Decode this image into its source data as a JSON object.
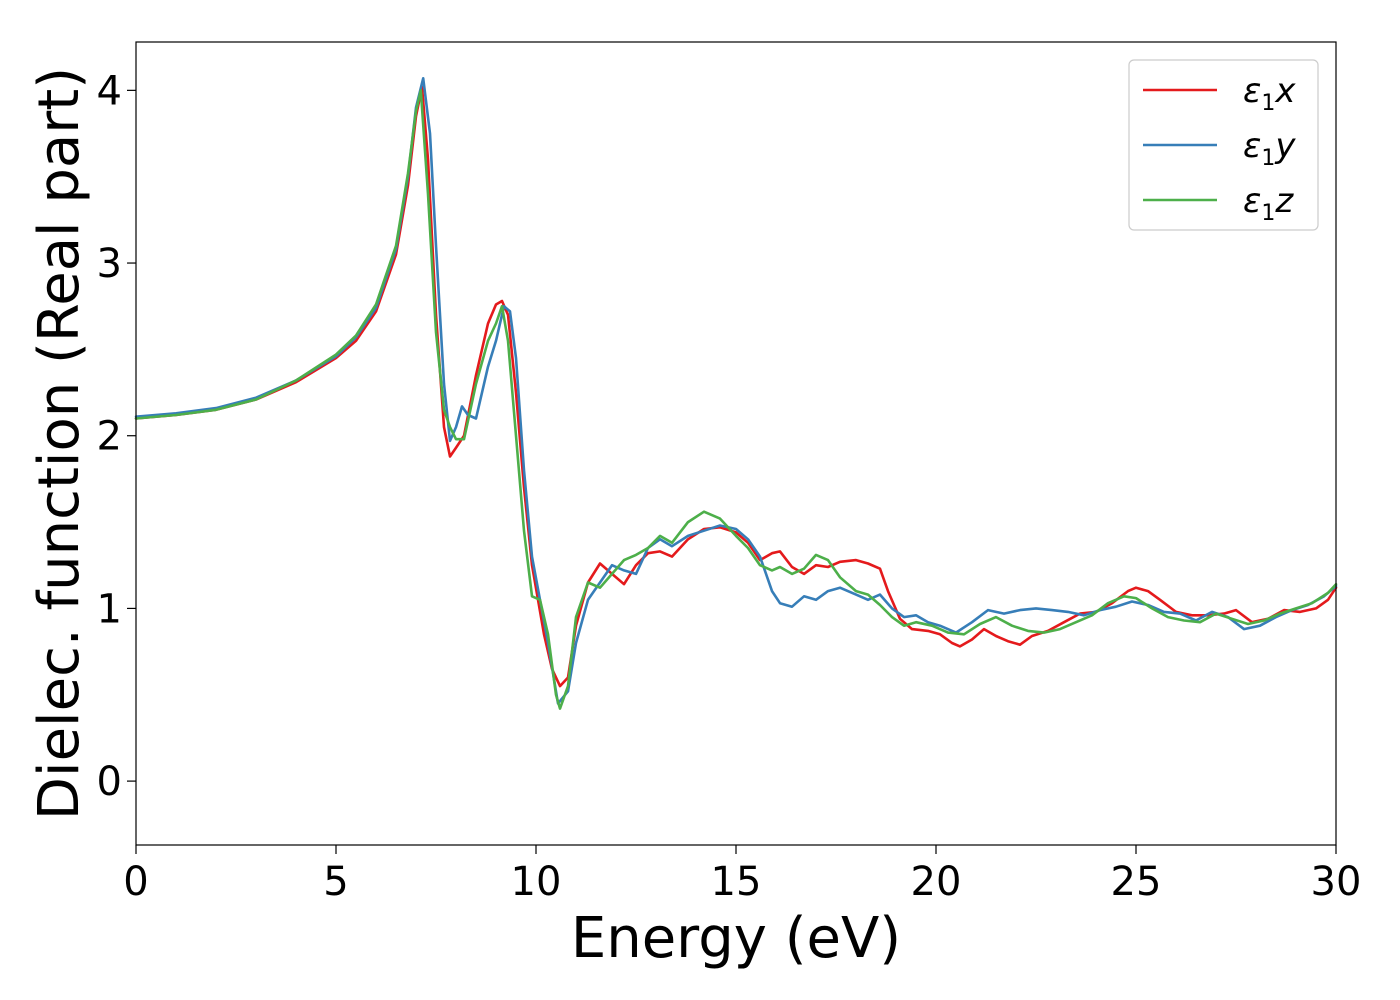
{
  "chart_data": {
    "type": "line",
    "title": "",
    "xlabel": "Energy (eV)",
    "ylabel": "Dielec. function (Real part)",
    "xlim": [
      0,
      30
    ],
    "ylim": [
      -0.37,
      4.28
    ],
    "xticks": [
      0,
      5,
      10,
      15,
      20,
      25,
      30
    ],
    "yticks": [
      0,
      1,
      2,
      3,
      4
    ],
    "grid": false,
    "legend_position": "top-right",
    "series": [
      {
        "name": "ε1x",
        "name_main": "ε",
        "name_sub": "1",
        "name_var": "x",
        "color": "#e41a1c",
        "points": [
          [
            0,
            2.1
          ],
          [
            1,
            2.12
          ],
          [
            2,
            2.15
          ],
          [
            3,
            2.21
          ],
          [
            4,
            2.31
          ],
          [
            5,
            2.45
          ],
          [
            5.5,
            2.55
          ],
          [
            6,
            2.72
          ],
          [
            6.5,
            3.05
          ],
          [
            6.8,
            3.45
          ],
          [
            7.0,
            3.85
          ],
          [
            7.15,
            4.02
          ],
          [
            7.3,
            3.6
          ],
          [
            7.5,
            2.7
          ],
          [
            7.7,
            2.05
          ],
          [
            7.85,
            1.88
          ],
          [
            8.0,
            1.93
          ],
          [
            8.2,
            2.0
          ],
          [
            8.5,
            2.35
          ],
          [
            8.8,
            2.65
          ],
          [
            9.0,
            2.76
          ],
          [
            9.15,
            2.78
          ],
          [
            9.3,
            2.7
          ],
          [
            9.5,
            2.25
          ],
          [
            9.7,
            1.7
          ],
          [
            9.9,
            1.25
          ],
          [
            10.2,
            0.85
          ],
          [
            10.4,
            0.65
          ],
          [
            10.6,
            0.55
          ],
          [
            10.8,
            0.6
          ],
          [
            11.0,
            0.9
          ],
          [
            11.3,
            1.15
          ],
          [
            11.6,
            1.26
          ],
          [
            11.9,
            1.2
          ],
          [
            12.2,
            1.14
          ],
          [
            12.5,
            1.25
          ],
          [
            12.8,
            1.32
          ],
          [
            13.1,
            1.33
          ],
          [
            13.4,
            1.3
          ],
          [
            13.8,
            1.4
          ],
          [
            14.2,
            1.46
          ],
          [
            14.6,
            1.47
          ],
          [
            15.0,
            1.44
          ],
          [
            15.3,
            1.38
          ],
          [
            15.6,
            1.28
          ],
          [
            15.9,
            1.32
          ],
          [
            16.1,
            1.33
          ],
          [
            16.4,
            1.24
          ],
          [
            16.7,
            1.2
          ],
          [
            17.0,
            1.25
          ],
          [
            17.3,
            1.24
          ],
          [
            17.6,
            1.27
          ],
          [
            18.0,
            1.28
          ],
          [
            18.3,
            1.26
          ],
          [
            18.6,
            1.23
          ],
          [
            18.8,
            1.1
          ],
          [
            19.1,
            0.94
          ],
          [
            19.4,
            0.88
          ],
          [
            19.8,
            0.87
          ],
          [
            20.1,
            0.85
          ],
          [
            20.4,
            0.8
          ],
          [
            20.6,
            0.78
          ],
          [
            20.9,
            0.82
          ],
          [
            21.2,
            0.88
          ],
          [
            21.5,
            0.84
          ],
          [
            21.8,
            0.81
          ],
          [
            22.1,
            0.79
          ],
          [
            22.4,
            0.84
          ],
          [
            22.8,
            0.87
          ],
          [
            23.2,
            0.92
          ],
          [
            23.6,
            0.97
          ],
          [
            24.0,
            0.98
          ],
          [
            24.4,
            1.03
          ],
          [
            24.8,
            1.1
          ],
          [
            25.0,
            1.12
          ],
          [
            25.3,
            1.1
          ],
          [
            25.6,
            1.05
          ],
          [
            26.0,
            0.98
          ],
          [
            26.4,
            0.96
          ],
          [
            26.8,
            0.96
          ],
          [
            27.2,
            0.97
          ],
          [
            27.5,
            0.99
          ],
          [
            27.9,
            0.92
          ],
          [
            28.3,
            0.94
          ],
          [
            28.7,
            0.99
          ],
          [
            29.1,
            0.98
          ],
          [
            29.5,
            1.0
          ],
          [
            29.8,
            1.05
          ],
          [
            30.0,
            1.12
          ]
        ]
      },
      {
        "name": "ε1y",
        "name_main": "ε",
        "name_sub": "1",
        "name_var": "y",
        "color": "#377eb8",
        "points": [
          [
            0,
            2.11
          ],
          [
            1,
            2.13
          ],
          [
            2,
            2.16
          ],
          [
            3,
            2.22
          ],
          [
            4,
            2.32
          ],
          [
            5,
            2.46
          ],
          [
            5.5,
            2.57
          ],
          [
            6,
            2.74
          ],
          [
            6.5,
            3.08
          ],
          [
            6.8,
            3.5
          ],
          [
            7.0,
            3.9
          ],
          [
            7.18,
            4.07
          ],
          [
            7.35,
            3.75
          ],
          [
            7.5,
            3.1
          ],
          [
            7.7,
            2.3
          ],
          [
            7.85,
            1.97
          ],
          [
            8.0,
            2.05
          ],
          [
            8.15,
            2.17
          ],
          [
            8.3,
            2.12
          ],
          [
            8.5,
            2.1
          ],
          [
            8.8,
            2.4
          ],
          [
            9.0,
            2.55
          ],
          [
            9.2,
            2.75
          ],
          [
            9.35,
            2.72
          ],
          [
            9.5,
            2.45
          ],
          [
            9.7,
            1.8
          ],
          [
            9.9,
            1.3
          ],
          [
            10.1,
            1.05
          ],
          [
            10.3,
            0.8
          ],
          [
            10.55,
            0.45
          ],
          [
            10.8,
            0.52
          ],
          [
            11.0,
            0.8
          ],
          [
            11.3,
            1.05
          ],
          [
            11.6,
            1.15
          ],
          [
            11.9,
            1.25
          ],
          [
            12.2,
            1.22
          ],
          [
            12.5,
            1.2
          ],
          [
            12.8,
            1.35
          ],
          [
            13.1,
            1.4
          ],
          [
            13.4,
            1.36
          ],
          [
            13.8,
            1.42
          ],
          [
            14.2,
            1.45
          ],
          [
            14.6,
            1.48
          ],
          [
            15.0,
            1.46
          ],
          [
            15.3,
            1.4
          ],
          [
            15.6,
            1.3
          ],
          [
            15.9,
            1.1
          ],
          [
            16.1,
            1.03
          ],
          [
            16.4,
            1.01
          ],
          [
            16.7,
            1.07
          ],
          [
            17.0,
            1.05
          ],
          [
            17.3,
            1.1
          ],
          [
            17.6,
            1.12
          ],
          [
            18.0,
            1.08
          ],
          [
            18.3,
            1.05
          ],
          [
            18.6,
            1.08
          ],
          [
            18.9,
            1.0
          ],
          [
            19.2,
            0.95
          ],
          [
            19.5,
            0.96
          ],
          [
            19.8,
            0.92
          ],
          [
            20.1,
            0.9
          ],
          [
            20.5,
            0.86
          ],
          [
            20.9,
            0.92
          ],
          [
            21.3,
            0.99
          ],
          [
            21.7,
            0.97
          ],
          [
            22.1,
            0.99
          ],
          [
            22.5,
            1.0
          ],
          [
            22.9,
            0.99
          ],
          [
            23.3,
            0.98
          ],
          [
            23.7,
            0.96
          ],
          [
            24.1,
            0.99
          ],
          [
            24.5,
            1.01
          ],
          [
            24.9,
            1.04
          ],
          [
            25.3,
            1.02
          ],
          [
            25.7,
            0.98
          ],
          [
            26.1,
            0.97
          ],
          [
            26.5,
            0.93
          ],
          [
            26.9,
            0.98
          ],
          [
            27.3,
            0.95
          ],
          [
            27.7,
            0.88
          ],
          [
            28.1,
            0.9
          ],
          [
            28.5,
            0.95
          ],
          [
            28.9,
            0.99
          ],
          [
            29.3,
            1.02
          ],
          [
            29.7,
            1.07
          ],
          [
            30.0,
            1.13
          ]
        ]
      },
      {
        "name": "ε1z",
        "name_main": "ε",
        "name_sub": "1",
        "name_var": "z",
        "color": "#4daf4a",
        "points": [
          [
            0,
            2.1
          ],
          [
            1,
            2.12
          ],
          [
            2,
            2.15
          ],
          [
            3,
            2.21
          ],
          [
            4,
            2.32
          ],
          [
            5,
            2.47
          ],
          [
            5.5,
            2.58
          ],
          [
            6,
            2.76
          ],
          [
            6.5,
            3.1
          ],
          [
            6.8,
            3.52
          ],
          [
            7.0,
            3.88
          ],
          [
            7.12,
            4.0
          ],
          [
            7.3,
            3.4
          ],
          [
            7.5,
            2.6
          ],
          [
            7.7,
            2.15
          ],
          [
            7.85,
            2.05
          ],
          [
            8.0,
            1.98
          ],
          [
            8.2,
            1.98
          ],
          [
            8.5,
            2.3
          ],
          [
            8.8,
            2.55
          ],
          [
            9.0,
            2.65
          ],
          [
            9.15,
            2.75
          ],
          [
            9.3,
            2.55
          ],
          [
            9.5,
            2.0
          ],
          [
            9.7,
            1.45
          ],
          [
            9.9,
            1.07
          ],
          [
            10.1,
            1.05
          ],
          [
            10.3,
            0.85
          ],
          [
            10.5,
            0.5
          ],
          [
            10.6,
            0.42
          ],
          [
            10.8,
            0.55
          ],
          [
            11.0,
            0.95
          ],
          [
            11.3,
            1.15
          ],
          [
            11.6,
            1.12
          ],
          [
            11.9,
            1.2
          ],
          [
            12.2,
            1.28
          ],
          [
            12.5,
            1.31
          ],
          [
            12.8,
            1.35
          ],
          [
            13.1,
            1.42
          ],
          [
            13.4,
            1.38
          ],
          [
            13.8,
            1.5
          ],
          [
            14.2,
            1.56
          ],
          [
            14.6,
            1.52
          ],
          [
            15.0,
            1.42
          ],
          [
            15.3,
            1.35
          ],
          [
            15.6,
            1.25
          ],
          [
            15.9,
            1.22
          ],
          [
            16.1,
            1.24
          ],
          [
            16.4,
            1.2
          ],
          [
            16.7,
            1.23
          ],
          [
            17.0,
            1.31
          ],
          [
            17.3,
            1.28
          ],
          [
            17.6,
            1.18
          ],
          [
            18.0,
            1.1
          ],
          [
            18.3,
            1.08
          ],
          [
            18.6,
            1.02
          ],
          [
            18.9,
            0.95
          ],
          [
            19.2,
            0.9
          ],
          [
            19.5,
            0.92
          ],
          [
            19.9,
            0.9
          ],
          [
            20.3,
            0.86
          ],
          [
            20.7,
            0.85
          ],
          [
            21.1,
            0.91
          ],
          [
            21.5,
            0.95
          ],
          [
            21.9,
            0.9
          ],
          [
            22.3,
            0.87
          ],
          [
            22.7,
            0.86
          ],
          [
            23.1,
            0.88
          ],
          [
            23.5,
            0.92
          ],
          [
            23.9,
            0.96
          ],
          [
            24.3,
            1.03
          ],
          [
            24.7,
            1.07
          ],
          [
            25.0,
            1.06
          ],
          [
            25.4,
            1.0
          ],
          [
            25.8,
            0.95
          ],
          [
            26.2,
            0.93
          ],
          [
            26.6,
            0.92
          ],
          [
            27.0,
            0.97
          ],
          [
            27.4,
            0.94
          ],
          [
            27.8,
            0.91
          ],
          [
            28.2,
            0.93
          ],
          [
            28.6,
            0.97
          ],
          [
            29.0,
            1.0
          ],
          [
            29.4,
            1.03
          ],
          [
            29.8,
            1.09
          ],
          [
            30.0,
            1.14
          ]
        ]
      }
    ]
  }
}
